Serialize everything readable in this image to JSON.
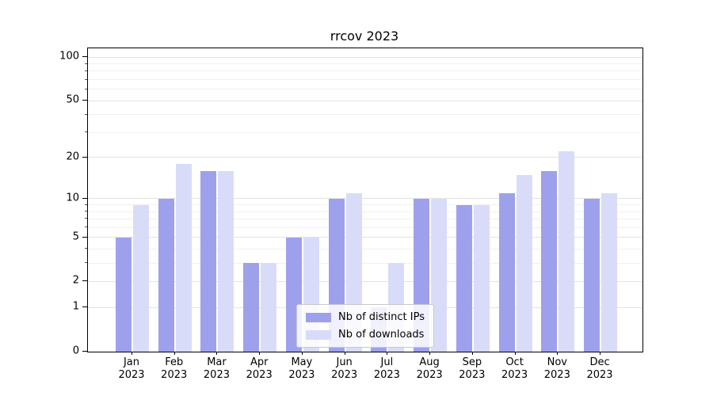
{
  "chart_data": {
    "type": "bar",
    "title": "rrcov 2023",
    "categories": [
      "Jan",
      "Feb",
      "Mar",
      "Apr",
      "May",
      "Jun",
      "Jul",
      "Aug",
      "Sep",
      "Oct",
      "Nov",
      "Dec"
    ],
    "year_label": "2023",
    "series": [
      {
        "name": "Nb of distinct IPs",
        "color": "#9da1ec",
        "values": [
          5,
          10,
          16,
          3,
          5,
          10,
          1,
          10,
          9,
          11,
          16,
          10
        ]
      },
      {
        "name": "Nb of downloads",
        "color": "#d9dcf8",
        "values": [
          9,
          18,
          16,
          3,
          5,
          11,
          3,
          10,
          9,
          15,
          22,
          11
        ]
      }
    ],
    "y_axis": {
      "scale": "log1p",
      "ticks": [
        0,
        1,
        2,
        5,
        10,
        20,
        50,
        100
      ],
      "minor_gridlines": [
        3,
        4,
        6,
        7,
        8,
        9,
        30,
        40,
        60,
        70,
        80,
        90
      ],
      "ylim": [
        0,
        115
      ]
    },
    "grid": true,
    "legend": {
      "position": "lower center"
    }
  },
  "style_colors": {
    "bar_distinct_ips": "#9da1ec",
    "bar_downloads": "#d9dcf8",
    "grid_major": "#e3e3e3",
    "grid_minor": "#f0f0f0",
    "axis": "#000000",
    "legend_border": "#c9c9c9"
  }
}
